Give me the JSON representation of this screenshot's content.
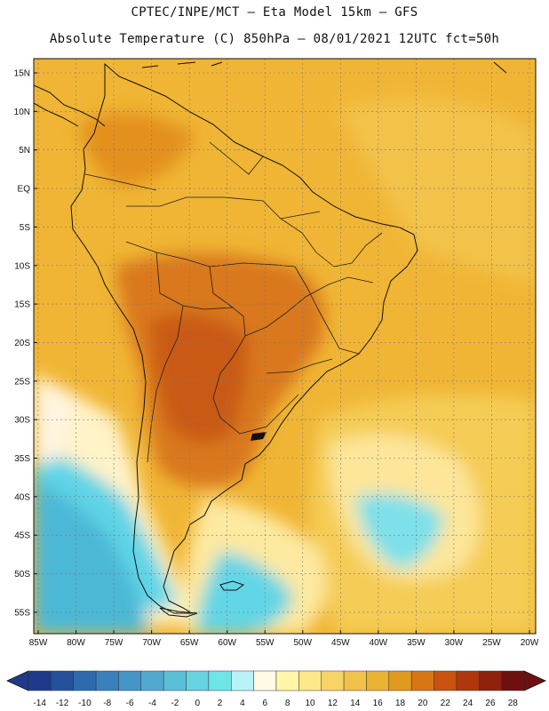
{
  "title": {
    "line1": "CPTEC/INPE/MCT –   Eta Model 15km – GFS",
    "line2": "Absolute Temperature (C) 850hPa – 08/01/2021 12UTC fct=50h"
  },
  "map": {
    "region": "South America",
    "variable": "Absolute Temperature (C) at 850hPa",
    "lat_labels": [
      "15N",
      "10N",
      "5N",
      "EQ",
      "5S",
      "10S",
      "15S",
      "20S",
      "25S",
      "30S",
      "35S",
      "40S",
      "45S",
      "50S",
      "55S"
    ],
    "lon_labels": [
      "85W",
      "80W",
      "75W",
      "70W",
      "65W",
      "60W",
      "55W",
      "50W",
      "45W",
      "40W",
      "35W",
      "30W",
      "25W",
      "20W"
    ]
  },
  "colorbar": {
    "labels": [
      "-14",
      "-12",
      "-10",
      "-8",
      "-6",
      "-4",
      "-2",
      "0",
      "2",
      "4",
      "6",
      "8",
      "10",
      "12",
      "14",
      "16",
      "18",
      "20",
      "22",
      "24",
      "26",
      "28"
    ],
    "colors": [
      "#1f3a8a",
      "#24509c",
      "#2e6aae",
      "#3a80bd",
      "#4594c6",
      "#51a9cf",
      "#5cbfd8",
      "#66d3e0",
      "#6ee6e8",
      "#b9f2f8",
      "#fff9e6",
      "#fff6a8",
      "#fde98a",
      "#f6d566",
      "#f0c24a",
      "#eab232",
      "#e09a1e",
      "#d87614",
      "#c8520e",
      "#b0360c",
      "#8e220c",
      "#6e1010"
    ]
  },
  "legend_colors": {
    "ocean_warm": "#f2b233",
    "land_hot": "#d8761a",
    "cold_blue": "#55d3e8"
  }
}
